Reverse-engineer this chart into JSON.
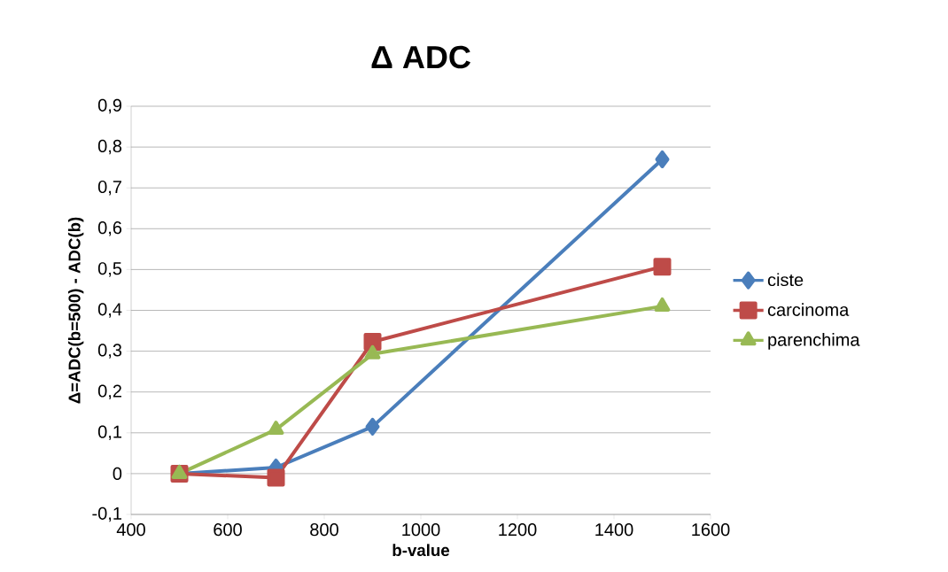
{
  "chart_data": {
    "type": "line",
    "title": "Δ ADC",
    "xlabel": "b-value",
    "ylabel": "Δ=ADC(b=500) - ADC(b)",
    "x": [
      500,
      700,
      900,
      1500
    ],
    "series": [
      {
        "name": "ciste",
        "color": "#4a7ebb",
        "marker": "diamond",
        "values": [
          0,
          0.015,
          0.115,
          0.77
        ]
      },
      {
        "name": "carcinoma",
        "color": "#be4b48",
        "marker": "square",
        "values": [
          0,
          -0.01,
          0.323,
          0.507
        ]
      },
      {
        "name": "parenchima",
        "color": "#98b954",
        "marker": "triangle",
        "values": [
          0,
          0.108,
          0.293,
          0.41
        ]
      }
    ],
    "xlim": [
      400,
      1600
    ],
    "xticks": [
      400,
      600,
      800,
      1000,
      1200,
      1400,
      1600
    ],
    "ylim": [
      -0.1,
      0.9
    ],
    "yticks": [
      {
        "value": -0.1,
        "label": "-0,1"
      },
      {
        "value": 0,
        "label": "0"
      },
      {
        "value": 0.1,
        "label": "0,1"
      },
      {
        "value": 0.2,
        "label": "0,2"
      },
      {
        "value": 0.3,
        "label": "0,3"
      },
      {
        "value": 0.4,
        "label": "0,4"
      },
      {
        "value": 0.5,
        "label": "0,5"
      },
      {
        "value": 0.6,
        "label": "0,6"
      },
      {
        "value": 0.7,
        "label": "0,7"
      },
      {
        "value": 0.8,
        "label": "0,8"
      },
      {
        "value": 0.9,
        "label": "0,9"
      }
    ],
    "grid": "y",
    "legend": "right",
    "line_style": "solid"
  }
}
